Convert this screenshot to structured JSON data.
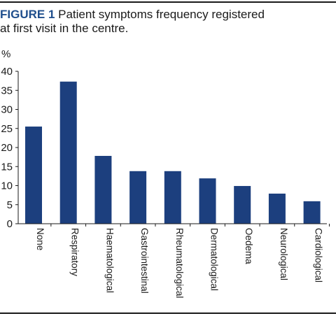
{
  "figure": {
    "label": "FIGURE 1",
    "caption_line1": "Patient symptoms frequency registered",
    "caption_line2": "at first visit in the centre."
  },
  "chart_data": {
    "type": "bar",
    "title": "",
    "xlabel": "",
    "ylabel": "%",
    "ylim": [
      0,
      40
    ],
    "yticks": [
      0,
      5,
      10,
      15,
      20,
      25,
      30,
      35,
      40
    ],
    "categories": [
      "None",
      "Respiratory",
      "Haematological",
      "Gastrointestinal",
      "Rheumatological",
      "Dermatological",
      "Oedema",
      "Neurological",
      "Cardiological"
    ],
    "values": [
      25.5,
      37.3,
      17.8,
      13.8,
      13.8,
      11.9,
      9.9,
      7.9,
      5.9
    ],
    "bar_color": "#1c3f7e",
    "grid": false,
    "legend": "none"
  }
}
